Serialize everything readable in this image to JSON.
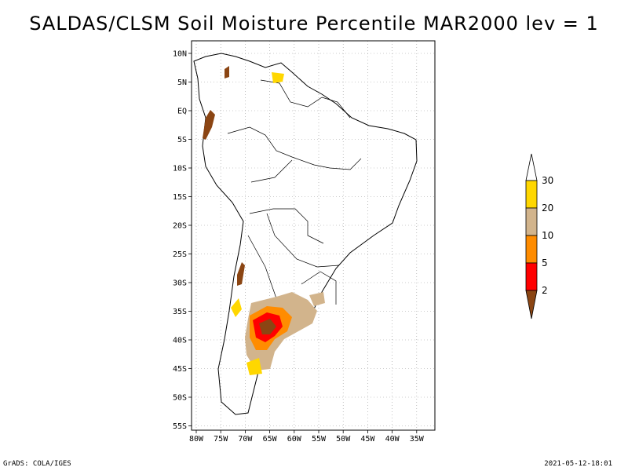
{
  "title": "SALDAS/CLSM Soil Moisture Percentile MAR2000 lev = 1",
  "footer": {
    "left": "GrADS: COLA/IGES",
    "right": "2021-05-12-18:01"
  },
  "colors": {
    "lt2": "#8B4513",
    "p2_5": "#FF0000",
    "p5_10": "#FF8C00",
    "p10_20": "#D2B48C",
    "p20_30": "#FFD700",
    "gt30": "#FFFFFF"
  },
  "map": {
    "lat_labels": [
      "10N",
      "5N",
      "EQ",
      "5S",
      "10S",
      "15S",
      "20S",
      "25S",
      "30S",
      "35S",
      "40S",
      "45S",
      "50S",
      "55S"
    ],
    "lon_labels": [
      "80W",
      "75W",
      "70W",
      "65W",
      "60W",
      "55W",
      "50W",
      "45W",
      "40W",
      "35W"
    ]
  },
  "colorbar": {
    "labels": [
      "2",
      "5",
      "10",
      "20",
      "30"
    ]
  }
}
